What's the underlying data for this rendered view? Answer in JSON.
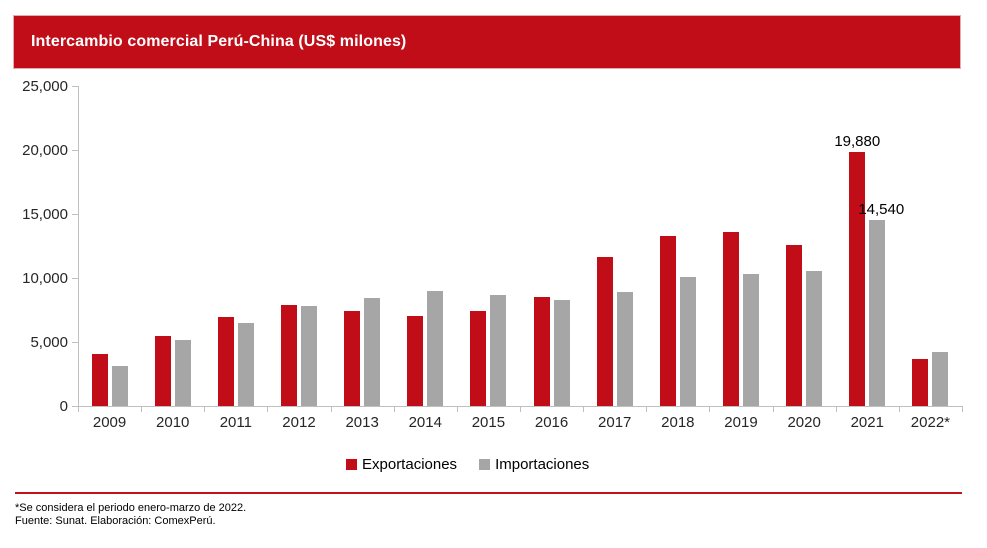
{
  "title": "Intercambio comercial Perú-China (US$ milones)",
  "colors": {
    "red": "#c00d18",
    "gray": "#a6a6a6",
    "axis": "#bfbfbf",
    "banner_bg": "#c00d18",
    "footer_rule": "#c0121e"
  },
  "chart_data": {
    "type": "bar",
    "title": "Intercambio comercial Perú-China (US$ milones)",
    "categories": [
      "2009",
      "2010",
      "2011",
      "2012",
      "2013",
      "2014",
      "2015",
      "2016",
      "2017",
      "2018",
      "2019",
      "2020",
      "2021",
      "2022*"
    ],
    "series": [
      {
        "name": "Exportaciones",
        "color_key": "red",
        "values": [
          4100,
          5450,
          6980,
          7900,
          7400,
          7060,
          7450,
          8500,
          11620,
          13300,
          13590,
          12580,
          19880,
          3700
        ]
      },
      {
        "name": "Importaciones",
        "color_key": "gray",
        "values": [
          3150,
          5150,
          6450,
          7850,
          8450,
          8950,
          8660,
          8250,
          8880,
          10080,
          10310,
          10560,
          14540,
          4200
        ]
      }
    ],
    "ylim": [
      0,
      25000
    ],
    "yticks": [
      0,
      5000,
      10000,
      15000,
      20000,
      25000
    ],
    "ytick_labels": [
      "0",
      "5,000",
      "10,000",
      "15,000",
      "20,000",
      "25,000"
    ],
    "grid": false,
    "legend_position": "bottom",
    "data_labels": [
      {
        "series": 0,
        "category_index": 12,
        "text": "19,880",
        "x_offset": 0
      },
      {
        "series": 1,
        "category_index": 12,
        "text": "14,540",
        "x_offset": 4
      }
    ]
  },
  "legend": {
    "items": [
      {
        "label": "Exportaciones",
        "color_key": "red"
      },
      {
        "label": "Importaciones",
        "color_key": "gray"
      }
    ]
  },
  "footer": {
    "note1": "*Se considera el periodo enero-marzo de 2022.",
    "note2": "Fuente: Sunat. Elaboración: ComexPerú."
  }
}
